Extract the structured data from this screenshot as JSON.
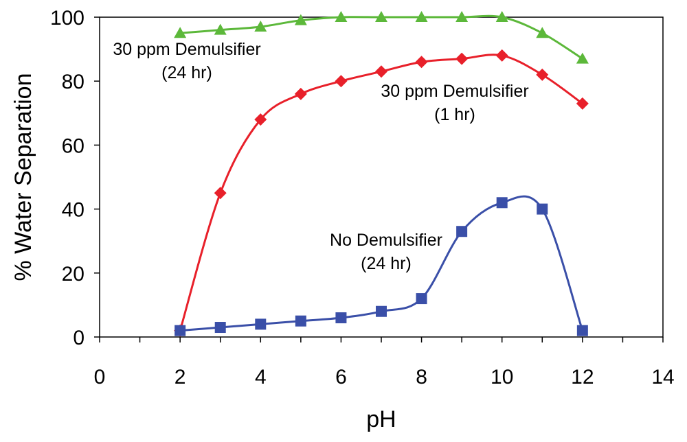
{
  "chart_data": {
    "type": "line",
    "title": "",
    "xlabel": "pH",
    "ylabel": "% Water Separation",
    "xlim": [
      0,
      14
    ],
    "ylim": [
      0,
      100
    ],
    "xticks": [
      0,
      2,
      4,
      6,
      8,
      10,
      12,
      14
    ],
    "yticks": [
      0,
      20,
      40,
      60,
      80,
      100
    ],
    "grid": false,
    "smoothed": true,
    "series": [
      {
        "name": "30 ppm Demulsifier (24 hr)",
        "label_lines": [
          "30 ppm Demulsifier",
          "(24 hr)"
        ],
        "color": "#5cb83a",
        "marker": "triangle",
        "x": [
          2,
          3,
          4,
          5,
          6,
          7,
          8,
          9,
          10,
          11,
          12
        ],
        "y": [
          95,
          96,
          97,
          99,
          100,
          100,
          100,
          100,
          100,
          95,
          87
        ]
      },
      {
        "name": "30 ppm Demulsifier (1 hr)",
        "label_lines": [
          "30 ppm Demulsifier",
          "(1 hr)"
        ],
        "color": "#e8202a",
        "marker": "diamond",
        "x": [
          2,
          3,
          4,
          5,
          6,
          7,
          8,
          9,
          10,
          11,
          12
        ],
        "y": [
          2,
          45,
          68,
          76,
          80,
          83,
          86,
          87,
          88,
          82,
          73
        ]
      },
      {
        "name": "No Demulsifier (24 hr)",
        "label_lines": [
          "No Demulsifier",
          "(24 hr)"
        ],
        "color": "#3a4fa8",
        "marker": "square",
        "x": [
          2,
          3,
          4,
          5,
          6,
          7,
          8,
          9,
          10,
          11,
          12
        ],
        "y": [
          2,
          3,
          4,
          5,
          6,
          8,
          12,
          33,
          42,
          40,
          2
        ]
      }
    ]
  }
}
